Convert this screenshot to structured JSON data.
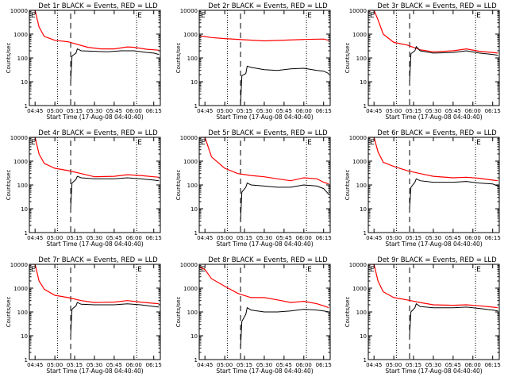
{
  "colors": {
    "events": "#000000",
    "lld": "#ff0000",
    "axis": "#000000",
    "background": "#ffffff"
  },
  "chart_data": [
    {
      "type": "line",
      "title": "Det 1r BLACK = Events, RED = LLD",
      "xlabel": "Start Time (17-Aug-08 04:40:40)",
      "ylabel": "Counts/sec",
      "x_tick_labels": [
        "04:45",
        "05:00",
        "05:15",
        "05:30",
        "05:45",
        "06:00",
        "06:15"
      ],
      "y_tick_labels": [
        "1",
        "10",
        "100",
        "1000",
        "10000"
      ],
      "xlim": [
        "04:40:40",
        "06:20:00"
      ],
      "ylim": [
        1,
        10000
      ],
      "yscale": "log",
      "dotted_lines_at": [
        "05:02",
        "06:02"
      ],
      "dashed_line_at": "05:12",
      "marker_label": "E",
      "series": [
        {
          "color": "red",
          "x": [
            "04:40:40",
            "04:45",
            "04:48",
            "04:52",
            "05:00",
            "05:10",
            "05:15",
            "05:25",
            "05:35",
            "05:45",
            "05:55",
            "06:00",
            "06:10",
            "06:15",
            "06:19"
          ],
          "y": [
            10000,
            10000,
            2000,
            800,
            550,
            480,
            400,
            280,
            240,
            240,
            290,
            280,
            230,
            220,
            210
          ]
        },
        {
          "color": "black",
          "x": [
            "05:12",
            "05:13",
            "05:16",
            "05:17",
            "05:20",
            "05:30",
            "05:40",
            "05:50",
            "06:00",
            "06:10",
            "06:15",
            "06:19"
          ],
          "y": [
            10,
            120,
            160,
            240,
            200,
            190,
            180,
            200,
            200,
            170,
            160,
            140
          ]
        }
      ]
    },
    {
      "type": "line",
      "title": "Det 2r BLACK = Events, RED = LLD",
      "xlabel": "Start Time (17-Aug-08 04:40:40)",
      "ylabel": "Counts/sec",
      "x_tick_labels": [
        "04:45",
        "05:00",
        "05:15",
        "05:30",
        "05:45",
        "06:00",
        "06:15"
      ],
      "y_tick_labels": [
        "1",
        "10",
        "100",
        "1000",
        "10000"
      ],
      "xlim": [
        "04:40:40",
        "06:20:00"
      ],
      "ylim": [
        1,
        10000
      ],
      "yscale": "log",
      "dotted_lines_at": [
        "05:02",
        "06:02"
      ],
      "dashed_line_at": "05:12",
      "marker_label": "E",
      "series": [
        {
          "color": "red",
          "x": [
            "04:40:40",
            "04:50",
            "05:00",
            "05:15",
            "05:30",
            "05:45",
            "06:00",
            "06:15",
            "06:19"
          ],
          "y": [
            850,
            720,
            650,
            580,
            520,
            560,
            600,
            620,
            550
          ]
        },
        {
          "color": "black",
          "x": [
            "05:12",
            "05:13",
            "05:16",
            "05:17",
            "05:20",
            "05:30",
            "05:40",
            "05:50",
            "06:00",
            "06:10",
            "06:15",
            "06:19"
          ],
          "y": [
            1,
            18,
            22,
            45,
            40,
            32,
            30,
            35,
            37,
            30,
            28,
            22
          ]
        }
      ]
    },
    {
      "type": "line",
      "title": "Det 3r BLACK = Events, RED = LLD",
      "xlabel": "Start Time (17-Aug-08 04:40:40)",
      "ylabel": "Counts/sec",
      "x_tick_labels": [
        "04:45",
        "05:00",
        "05:15",
        "05:30",
        "05:45",
        "06:00",
        "06:15"
      ],
      "y_tick_labels": [
        "1",
        "10",
        "100",
        "1000",
        "10000"
      ],
      "xlim": [
        "04:40:40",
        "06:20:00"
      ],
      "ylim": [
        1,
        10000
      ],
      "yscale": "log",
      "dotted_lines_at": [
        "05:02",
        "06:02"
      ],
      "dashed_line_at": "05:12",
      "marker_label": "E",
      "series": [
        {
          "color": "red",
          "x": [
            "04:40:40",
            "04:45",
            "04:48",
            "04:52",
            "05:00",
            "05:10",
            "05:20",
            "05:30",
            "05:45",
            "05:55",
            "06:05",
            "06:15",
            "06:19"
          ],
          "y": [
            10000,
            10000,
            4000,
            1000,
            450,
            350,
            220,
            180,
            200,
            240,
            190,
            170,
            160
          ]
        },
        {
          "color": "black",
          "x": [
            "05:12",
            "05:13",
            "05:16",
            "05:17",
            "05:20",
            "05:30",
            "05:45",
            "05:55",
            "06:05",
            "06:15",
            "06:19"
          ],
          "y": [
            10,
            150,
            200,
            300,
            200,
            160,
            170,
            200,
            160,
            140,
            130
          ]
        }
      ]
    },
    {
      "type": "line",
      "title": "Det 4r BLACK = Events, RED = LLD",
      "xlabel": "Start Time (17-Aug-08 04:40:40)",
      "ylabel": "Counts/sec",
      "x_tick_labels": [
        "04:45",
        "05:00",
        "05:15",
        "05:30",
        "05:45",
        "06:00",
        "06:15"
      ],
      "y_tick_labels": [
        "1",
        "10",
        "100",
        "1000",
        "10000"
      ],
      "xlim": [
        "04:40:40",
        "06:20:00"
      ],
      "ylim": [
        1,
        10000
      ],
      "yscale": "log",
      "dotted_lines_at": [
        "05:02",
        "06:02"
      ],
      "dashed_line_at": "05:12",
      "marker_label": "E",
      "series": [
        {
          "color": "red",
          "x": [
            "04:40:40",
            "04:45",
            "04:48",
            "04:52",
            "05:00",
            "05:10",
            "05:20",
            "05:30",
            "05:45",
            "05:55",
            "06:05",
            "06:15",
            "06:19"
          ],
          "y": [
            10000,
            10000,
            2000,
            800,
            500,
            400,
            300,
            220,
            230,
            270,
            250,
            220,
            210
          ]
        },
        {
          "color": "black",
          "x": [
            "05:12",
            "05:13",
            "05:16",
            "05:17",
            "05:20",
            "05:30",
            "05:45",
            "05:55",
            "06:05",
            "06:15",
            "06:19"
          ],
          "y": [
            10,
            120,
            170,
            230,
            200,
            180,
            180,
            200,
            180,
            160,
            150
          ]
        }
      ]
    },
    {
      "type": "line",
      "title": "Det 5r BLACK = Events, RED = LLD",
      "xlabel": "Start Time (17-Aug-08 04:40:40)",
      "ylabel": "Counts/sec",
      "x_tick_labels": [
        "04:45",
        "05:00",
        "05:15",
        "05:30",
        "05:45",
        "06:00",
        "06:15"
      ],
      "y_tick_labels": [
        "1",
        "10",
        "100",
        "1000",
        "10000"
      ],
      "xlim": [
        "04:40:40",
        "06:20:00"
      ],
      "ylim": [
        1,
        10000
      ],
      "yscale": "log",
      "dotted_lines_at": [
        "05:02",
        "06:02"
      ],
      "dashed_line_at": "05:12",
      "marker_label": "E",
      "series": [
        {
          "color": "red",
          "x": [
            "04:40:40",
            "04:45",
            "04:50",
            "05:00",
            "05:10",
            "05:20",
            "05:30",
            "05:40",
            "05:50",
            "06:00",
            "06:10",
            "06:15",
            "06:19"
          ],
          "y": [
            15000,
            10000,
            1500,
            500,
            300,
            250,
            220,
            180,
            150,
            200,
            180,
            130,
            110
          ]
        },
        {
          "color": "black",
          "x": [
            "05:12",
            "05:13",
            "05:16",
            "05:17",
            "05:20",
            "05:30",
            "05:40",
            "05:50",
            "06:00",
            "06:10",
            "06:15",
            "06:19"
          ],
          "y": [
            3,
            50,
            80,
            120,
            100,
            90,
            80,
            80,
            100,
            90,
            70,
            40
          ]
        }
      ]
    },
    {
      "type": "line",
      "title": "Det 6r BLACK = Events, RED = LLD",
      "xlabel": "Start Time (17-Aug-08 04:40:40)",
      "ylabel": "Counts/sec",
      "x_tick_labels": [
        "04:45",
        "05:00",
        "05:15",
        "05:30",
        "05:45",
        "06:00",
        "06:15"
      ],
      "y_tick_labels": [
        "1",
        "10",
        "100",
        "1000",
        "10000"
      ],
      "xlim": [
        "04:40:40",
        "06:20:00"
      ],
      "ylim": [
        1,
        10000
      ],
      "yscale": "log",
      "dotted_lines_at": [
        "05:02",
        "06:02"
      ],
      "dashed_line_at": "05:12",
      "marker_label": "E",
      "series": [
        {
          "color": "red",
          "x": [
            "04:40:40",
            "04:45",
            "04:48",
            "04:52",
            "05:00",
            "05:10",
            "05:20",
            "05:30",
            "05:45",
            "05:55",
            "06:05",
            "06:15",
            "06:19"
          ],
          "y": [
            10000,
            10000,
            2500,
            900,
            600,
            400,
            300,
            230,
            200,
            210,
            190,
            160,
            150
          ]
        },
        {
          "color": "black",
          "x": [
            "05:12",
            "05:13",
            "05:16",
            "05:17",
            "05:20",
            "05:30",
            "05:45",
            "05:55",
            "06:05",
            "06:15",
            "06:19"
          ],
          "y": [
            10,
            80,
            130,
            180,
            150,
            130,
            130,
            140,
            120,
            110,
            90
          ]
        }
      ]
    },
    {
      "type": "line",
      "title": "Det 7r BLACK = Events, RED = LLD",
      "xlabel": "Start Time (17-Aug-08 04:40:40)",
      "ylabel": "Counts/sec",
      "x_tick_labels": [
        "04:45",
        "05:00",
        "05:15",
        "05:30",
        "05:45",
        "06:00",
        "06:15"
      ],
      "y_tick_labels": [
        "1",
        "10",
        "100",
        "1000",
        "10000"
      ],
      "xlim": [
        "04:40:40",
        "06:20:00"
      ],
      "ylim": [
        1,
        10000
      ],
      "yscale": "log",
      "dotted_lines_at": [
        "05:02",
        "06:02"
      ],
      "dashed_line_at": "05:12",
      "marker_label": "E",
      "series": [
        {
          "color": "red",
          "x": [
            "04:40:40",
            "04:45",
            "04:48",
            "04:52",
            "05:00",
            "05:10",
            "05:20",
            "05:30",
            "05:45",
            "05:55",
            "06:05",
            "06:15",
            "06:19"
          ],
          "y": [
            10000,
            10000,
            2000,
            900,
            500,
            400,
            300,
            250,
            260,
            300,
            260,
            230,
            220
          ]
        },
        {
          "color": "black",
          "x": [
            "05:12",
            "05:13",
            "05:16",
            "05:17",
            "05:20",
            "05:30",
            "05:45",
            "05:55",
            "06:05",
            "06:15",
            "06:19"
          ],
          "y": [
            10,
            130,
            180,
            250,
            210,
            200,
            200,
            220,
            200,
            170,
            160
          ]
        }
      ]
    },
    {
      "type": "line",
      "title": "Det 8r BLACK = Events, RED = LLD",
      "xlabel": "Start Time (17-Aug-08 04:40:40)",
      "ylabel": "Counts/sec",
      "x_tick_labels": [
        "04:45",
        "05:00",
        "05:15",
        "05:30",
        "05:45",
        "06:00",
        "06:15"
      ],
      "y_tick_labels": [
        "1",
        "10",
        "100",
        "1000",
        "10000"
      ],
      "xlim": [
        "04:40:40",
        "06:20:00"
      ],
      "ylim": [
        1,
        10000
      ],
      "yscale": "log",
      "dotted_lines_at": [
        "05:02",
        "06:02"
      ],
      "dashed_line_at": "05:12",
      "marker_label": "E",
      "series": [
        {
          "color": "red",
          "x": [
            "04:40:40",
            "04:45",
            "04:50",
            "05:00",
            "05:10",
            "05:20",
            "05:30",
            "05:40",
            "05:50",
            "06:00",
            "06:10",
            "06:15",
            "06:19"
          ],
          "y": [
            8000,
            6000,
            2500,
            1200,
            600,
            400,
            400,
            320,
            250,
            280,
            220,
            180,
            150
          ]
        },
        {
          "color": "black",
          "x": [
            "05:12",
            "05:13",
            "05:16",
            "05:17",
            "05:20",
            "05:30",
            "05:40",
            "05:50",
            "06:00",
            "06:10",
            "06:15",
            "06:19"
          ],
          "y": [
            3,
            40,
            80,
            150,
            120,
            100,
            100,
            110,
            130,
            120,
            110,
            100
          ]
        }
      ]
    },
    {
      "type": "line",
      "title": "Det 9r BLACK = Events, RED = LLD",
      "xlabel": "Start Time (17-Aug-08 04:40:40)",
      "ylabel": "Counts/sec",
      "x_tick_labels": [
        "04:45",
        "05:00",
        "05:15",
        "05:30",
        "05:45",
        "06:00",
        "06:15"
      ],
      "y_tick_labels": [
        "1",
        "10",
        "100",
        "1000",
        "10000"
      ],
      "xlim": [
        "04:40:40",
        "06:20:00"
      ],
      "ylim": [
        1,
        10000
      ],
      "yscale": "log",
      "dotted_lines_at": [
        "05:02",
        "06:02"
      ],
      "dashed_line_at": "05:12",
      "marker_label": "E",
      "series": [
        {
          "color": "red",
          "x": [
            "04:40:40",
            "04:45",
            "04:48",
            "04:52",
            "05:00",
            "05:10",
            "05:20",
            "05:30",
            "05:45",
            "05:55",
            "06:05",
            "06:15",
            "06:19"
          ],
          "y": [
            10000,
            10000,
            2000,
            700,
            400,
            320,
            250,
            200,
            190,
            200,
            180,
            160,
            150
          ]
        },
        {
          "color": "black",
          "x": [
            "05:12",
            "05:13",
            "05:16",
            "05:17",
            "05:20",
            "05:30",
            "05:45",
            "05:55",
            "06:05",
            "06:15",
            "06:19"
          ],
          "y": [
            10,
            100,
            150,
            220,
            170,
            150,
            150,
            160,
            140,
            120,
            110
          ]
        }
      ]
    }
  ]
}
